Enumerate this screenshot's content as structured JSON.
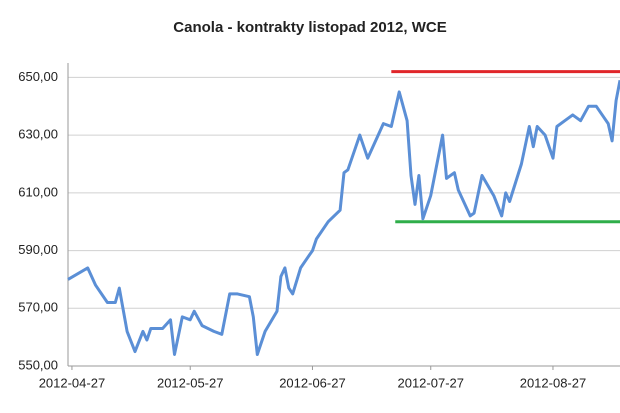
{
  "chart_data": {
    "type": "line",
    "title": "Canola - kontrakty listopad 2012, WCE",
    "x": [
      "2012-04-26",
      "2012-05-01",
      "2012-05-03",
      "2012-05-06",
      "2012-05-08",
      "2012-05-09",
      "2012-05-11",
      "2012-05-13",
      "2012-05-15",
      "2012-05-16",
      "2012-05-17",
      "2012-05-20",
      "2012-05-22",
      "2012-05-23",
      "2012-05-25",
      "2012-05-27",
      "2012-05-28",
      "2012-05-30",
      "2012-06-02",
      "2012-06-04",
      "2012-06-06",
      "2012-06-08",
      "2012-06-11",
      "2012-06-12",
      "2012-06-13",
      "2012-06-15",
      "2012-06-18",
      "2012-06-19",
      "2012-06-20",
      "2012-06-21",
      "2012-06-22",
      "2012-06-24",
      "2012-06-26",
      "2012-06-27",
      "2012-06-28",
      "2012-07-01",
      "2012-07-04",
      "2012-07-05",
      "2012-07-06",
      "2012-07-09",
      "2012-07-11",
      "2012-07-15",
      "2012-07-17",
      "2012-07-19",
      "2012-07-21",
      "2012-07-22",
      "2012-07-23",
      "2012-07-24",
      "2012-07-25",
      "2012-07-27",
      "2012-07-30",
      "2012-07-31",
      "2012-08-02",
      "2012-08-03",
      "2012-08-06",
      "2012-08-07",
      "2012-08-09",
      "2012-08-12",
      "2012-08-14",
      "2012-08-15",
      "2012-08-16",
      "2012-08-19",
      "2012-08-21",
      "2012-08-22",
      "2012-08-23",
      "2012-08-25",
      "2012-08-27",
      "2012-08-28",
      "2012-08-30",
      "2012-09-01",
      "2012-09-03",
      "2012-09-05",
      "2012-09-06",
      "2012-09-07",
      "2012-09-09",
      "2012-09-10",
      "2012-09-11",
      "2012-09-12",
      "2012-09-13"
    ],
    "series": [
      {
        "color": "#5b8fd6",
        "values": [
          580,
          584,
          578,
          572,
          572,
          577,
          562,
          555,
          562,
          559,
          563,
          563,
          566,
          554,
          567,
          566,
          569,
          564,
          562,
          561,
          575,
          575,
          574,
          567,
          554,
          562,
          569,
          581,
          584,
          577,
          575,
          584,
          588,
          590,
          594,
          600,
          604,
          617,
          618,
          630,
          622,
          634,
          633,
          645,
          635,
          616,
          606,
          616,
          601,
          609,
          630,
          615,
          617,
          611,
          602,
          603,
          616,
          609,
          602,
          610,
          607,
          620,
          633,
          626,
          633,
          630,
          622,
          633,
          635,
          637,
          635,
          640,
          640,
          640,
          636,
          634,
          628,
          642,
          649
        ]
      }
    ],
    "reference_lines": [
      {
        "value": 652,
        "color": "#e0262a",
        "start": "2012-07-17"
      },
      {
        "value": 600,
        "color": "#2fae4a",
        "start": "2012-07-18"
      }
    ],
    "xlim": [
      "2012-04-26",
      "2012-09-13"
    ],
    "xticks": [
      "2012-04-27",
      "2012-05-27",
      "2012-06-27",
      "2012-07-27",
      "2012-08-27"
    ],
    "ylim": [
      550,
      655
    ],
    "yticks": [
      {
        "value": 550,
        "label": "550,00"
      },
      {
        "value": 570,
        "label": "570,00"
      },
      {
        "value": 590,
        "label": "590,00"
      },
      {
        "value": 610,
        "label": "610,00"
      },
      {
        "value": 630,
        "label": "630,00"
      },
      {
        "value": 650,
        "label": "650,00"
      }
    ],
    "grid": true
  }
}
